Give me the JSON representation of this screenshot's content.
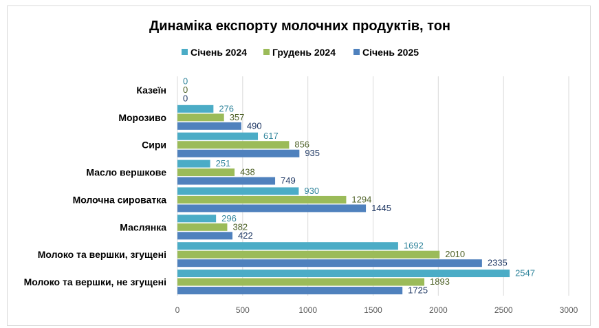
{
  "chart_data": {
    "type": "bar",
    "orientation": "horizontal",
    "title": "Динаміка експорту молочних продуктів, тон",
    "categories": [
      "Казеїн",
      "Морозиво",
      "Сири",
      "Масло вершкове",
      "Молочна сироватка",
      "Маслянка",
      "Молоко та вершки, згущені",
      "Молоко та вершки, не згущені"
    ],
    "series": [
      {
        "name": "Січень 2024",
        "color": "#4bacc6",
        "label_color": "#31859c",
        "values": [
          0,
          276,
          617,
          251,
          930,
          296,
          1692,
          2547
        ]
      },
      {
        "name": "Грудень 2024",
        "color": "#9bbb59",
        "label_color": "#4f6228",
        "values": [
          0,
          357,
          856,
          438,
          1294,
          382,
          2010,
          1893
        ]
      },
      {
        "name": "Січень 2025",
        "color": "#4f81bd",
        "label_color": "#1f3864",
        "values": [
          0,
          490,
          935,
          749,
          1445,
          422,
          2335,
          1725
        ]
      }
    ],
    "xlim": [
      0,
      3000
    ],
    "xticks": [
      "0",
      "500",
      "1000",
      "1500",
      "2000",
      "2500",
      "3000"
    ],
    "tick_values": [
      0,
      500,
      1000,
      1500,
      2000,
      2500,
      3000
    ],
    "grid": true,
    "legend_position": "top"
  }
}
